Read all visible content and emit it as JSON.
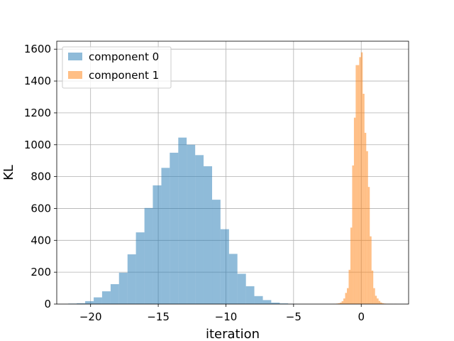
{
  "chart_data": {
    "type": "bar",
    "title": "",
    "xlabel": "iteration",
    "ylabel": "KL",
    "xlim": [
      -22.5,
      3.5
    ],
    "ylim": [
      0,
      1650
    ],
    "x_ticks": [
      -20,
      -15,
      -10,
      -5,
      0
    ],
    "x_tick_labels": [
      "−20",
      "−15",
      "−10",
      "−5",
      "0"
    ],
    "y_ticks": [
      0,
      200,
      400,
      600,
      800,
      1000,
      1200,
      1400,
      1600
    ],
    "y_tick_labels": [
      "0",
      "200",
      "400",
      "600",
      "800",
      "1000",
      "1200",
      "1400",
      "1600"
    ],
    "grid": true,
    "legend_position": "upper-left",
    "series": [
      {
        "name": "component 0",
        "color": "#1f77b4",
        "opacity": 0.5,
        "bin_edges": [
          -21.65,
          -21.02,
          -20.4,
          -19.77,
          -19.15,
          -18.52,
          -17.9,
          -17.27,
          -16.65,
          -16.02,
          -15.4,
          -14.77,
          -14.15,
          -13.52,
          -12.9,
          -12.27,
          -11.65,
          -11.02,
          -10.4,
          -9.77,
          -9.15,
          -8.52,
          -7.9,
          -7.27,
          -6.65,
          -6.02,
          -5.4,
          -4.77
        ],
        "counts": [
          3,
          5,
          18,
          42,
          80,
          125,
          197,
          312,
          450,
          603,
          745,
          855,
          950,
          1045,
          1000,
          935,
          865,
          655,
          470,
          315,
          190,
          112,
          50,
          25,
          9,
          4,
          1
        ]
      },
      {
        "name": "component 1",
        "color": "#ff7f0e",
        "opacity": 0.5,
        "bin_edges": [
          -2.1,
          -1.97,
          -1.84,
          -1.71,
          -1.58,
          -1.45,
          -1.32,
          -1.19,
          -1.06,
          -0.93,
          -0.8,
          -0.67,
          -0.54,
          -0.41,
          -0.28,
          -0.15,
          -0.02,
          0.11,
          0.24,
          0.37,
          0.5,
          0.63,
          0.76,
          0.89,
          1.02,
          1.15,
          1.28,
          1.41,
          1.54,
          1.67,
          1.8,
          1.93,
          2.06,
          2.19,
          2.32,
          2.45,
          2.58
        ],
        "counts": [
          1,
          1,
          3,
          5,
          9,
          18,
          35,
          70,
          100,
          215,
          480,
          870,
          1170,
          1500,
          1500,
          1550,
          1580,
          1320,
          1075,
          960,
          735,
          425,
          210,
          100,
          52,
          35,
          20,
          10,
          5,
          3,
          2,
          1,
          1,
          1,
          0,
          1
        ]
      }
    ]
  }
}
